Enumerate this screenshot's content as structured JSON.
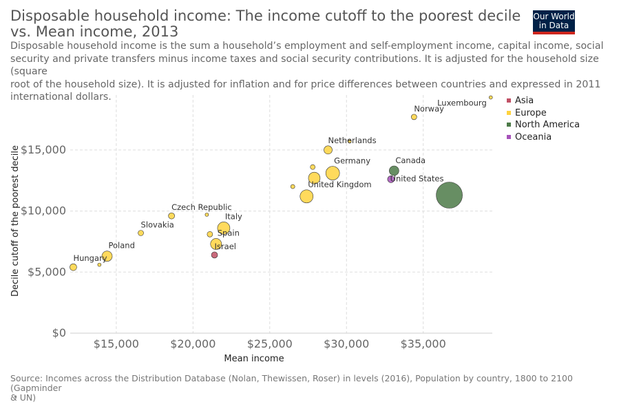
{
  "header": {
    "title": "Disposable household income: The income cutoff to the poorest decile vs. Mean income, 2013",
    "subtitle": "Disposable household income is the sum a household’s employment and self-employment income, capital income, social\nsecurity and private transfers minus income taxes and social security contributions. It is adjusted for the household size (square\nroot of the household size). It is adjusted for inflation and for price differences between countries and expressed in 2011\ninternational dollars."
  },
  "logo": {
    "line1": "Our World",
    "line2": "in Data"
  },
  "footer": {
    "source": "Source: Incomes across the Distribution Database (Nolan, Thewissen, Roser) in levels (2016), Population by country, 1800 to 2100 (Gapminder\n& UN)",
    "bullet": "•"
  },
  "chart_data": {
    "type": "scatter",
    "xlabel": "Mean income",
    "ylabel": "Decile cutoff of the poorest decile",
    "xlim": [
      12000,
      39500
    ],
    "ylim": [
      0,
      19500
    ],
    "x_ticks": [
      15000,
      20000,
      25000,
      30000,
      35000
    ],
    "x_tick_labels": [
      "$15,000",
      "$20,000",
      "$25,000",
      "$30,000",
      "$35,000"
    ],
    "y_ticks": [
      0,
      5000,
      10000,
      15000
    ],
    "y_tick_labels": [
      "$0",
      "$5,000",
      "$10,000",
      "$15,000"
    ],
    "grid": true,
    "legend_position": "right",
    "series": [
      {
        "name": "Asia",
        "color": "#c15065"
      },
      {
        "name": "Europe",
        "color": "#ffd33f"
      },
      {
        "name": "North America",
        "color": "#4c7a48"
      },
      {
        "name": "Oceania",
        "color": "#a652ba"
      }
    ],
    "points": [
      {
        "label": "Luxembourg",
        "x": 39400,
        "y": 19300,
        "size": 3,
        "series": "Europe"
      },
      {
        "label": "Norway",
        "x": 34400,
        "y": 17700,
        "size": 6,
        "series": "Europe"
      },
      {
        "label": "Netherlands",
        "x": 28800,
        "y": 15000,
        "size": 10,
        "series": "Europe"
      },
      {
        "label": "",
        "x": 30200,
        "y": 15700,
        "size": 3,
        "series": "Europe"
      },
      {
        "label": "Germany",
        "x": 29100,
        "y": 13100,
        "size": 18,
        "series": "Europe"
      },
      {
        "label": "",
        "x": 27800,
        "y": 13600,
        "size": 5,
        "series": "Europe"
      },
      {
        "label": "",
        "x": 27900,
        "y": 12700,
        "size": 15,
        "series": "Europe"
      },
      {
        "label": "",
        "x": 26500,
        "y": 12000,
        "size": 4,
        "series": "Europe"
      },
      {
        "label": "United Kingdom",
        "x": 27400,
        "y": 11200,
        "size": 17,
        "series": "Europe"
      },
      {
        "label": "Canada",
        "x": 33100,
        "y": 13300,
        "size": 12,
        "series": "North America"
      },
      {
        "label": "United States",
        "x": 36700,
        "y": 11300,
        "size": 36,
        "series": "North America"
      },
      {
        "label": "",
        "x": 32900,
        "y": 12600,
        "size": 8,
        "series": "Oceania"
      },
      {
        "label": "Czech Republic",
        "x": 18600,
        "y": 9600,
        "size": 7,
        "series": "Europe"
      },
      {
        "label": "",
        "x": 20900,
        "y": 9700,
        "size": 3,
        "series": "Europe"
      },
      {
        "label": "Italy",
        "x": 22000,
        "y": 8600,
        "size": 16,
        "series": "Europe"
      },
      {
        "label": "Spain",
        "x": 21500,
        "y": 7300,
        "size": 14,
        "series": "Europe"
      },
      {
        "label": "",
        "x": 21100,
        "y": 8100,
        "size": 6,
        "series": "Europe"
      },
      {
        "label": "Israel",
        "x": 21400,
        "y": 6400,
        "size": 7,
        "series": "Asia"
      },
      {
        "label": "Slovakia",
        "x": 16600,
        "y": 8200,
        "size": 6,
        "series": "Europe"
      },
      {
        "label": "Poland",
        "x": 14400,
        "y": 6300,
        "size": 13,
        "series": "Europe"
      },
      {
        "label": "Hungary",
        "x": 12200,
        "y": 5400,
        "size": 8,
        "series": "Europe"
      },
      {
        "label": "",
        "x": 13900,
        "y": 5600,
        "size": 3,
        "series": "Europe"
      }
    ]
  }
}
